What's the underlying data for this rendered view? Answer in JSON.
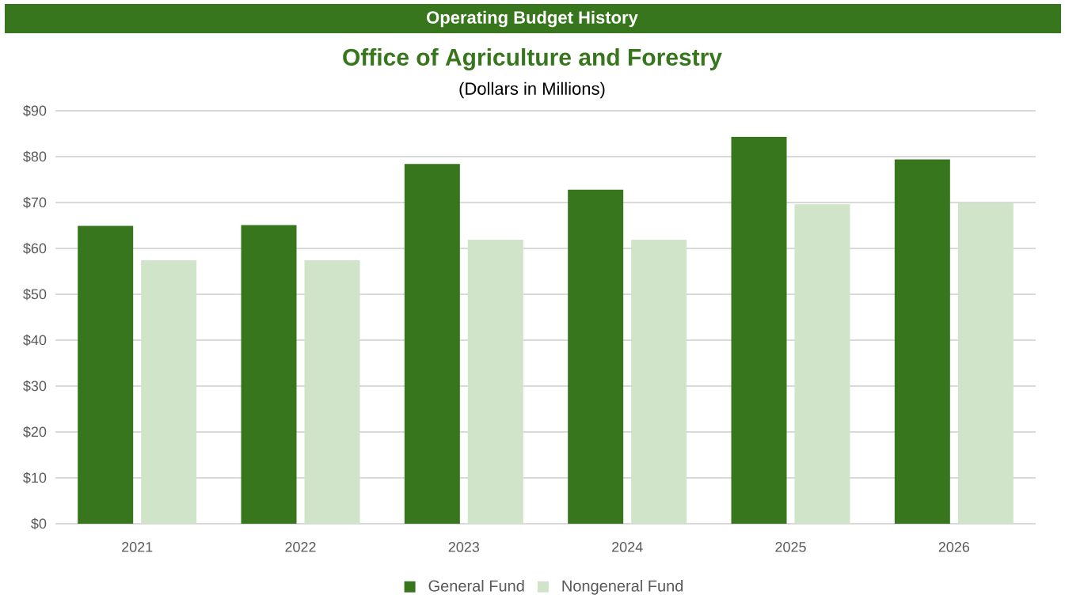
{
  "chart_data": {
    "type": "bar",
    "title": "Office of Agriculture and Forestry",
    "subtitle": "(Dollars in Millions)",
    "annotations": [
      "Operating Budget History"
    ],
    "categories": [
      "2021",
      "2022",
      "2023",
      "2024",
      "2025",
      "2026"
    ],
    "series": [
      {
        "name": "General Fund",
        "color": "#38761d",
        "values": [
          64.9,
          65.1,
          78.4,
          72.8,
          84.3,
          79.4
        ]
      },
      {
        "name": "Nongeneral Fund",
        "color": "#cfe4c8",
        "values": [
          57.4,
          57.4,
          61.9,
          61.9,
          69.6,
          69.9
        ]
      }
    ],
    "ylim": [
      0,
      90
    ],
    "yticks": [
      {
        "value": 0,
        "label": "$0"
      },
      {
        "value": 10,
        "label": "$10"
      },
      {
        "value": 20,
        "label": "$20"
      },
      {
        "value": 30,
        "label": "$30"
      },
      {
        "value": 40,
        "label": "$40"
      },
      {
        "value": 50,
        "label": "$50"
      },
      {
        "value": 60,
        "label": "$60"
      },
      {
        "value": 70,
        "label": "$70"
      },
      {
        "value": 80,
        "label": "$80"
      },
      {
        "value": 90,
        "label": "$90"
      }
    ],
    "grid": "y",
    "legend": "bottom"
  }
}
